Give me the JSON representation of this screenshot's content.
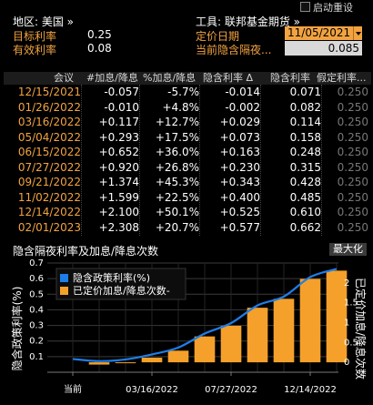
{
  "header": {
    "restart_label": "启动重设",
    "region_label": "地区: 美国 »",
    "tool_label": "工具: 联邦基金期货 »",
    "target_rate_label": "目标利率",
    "target_rate_value": "0.25",
    "effective_rate_label": "有效利率",
    "effective_rate_value": "0.08",
    "pricing_date_label": "定价日期",
    "pricing_date_value": "11/05/2021",
    "implied_rate_label": "当前隐含隔夜...",
    "implied_rate_value": "0.085"
  },
  "table": {
    "headers": [
      "会议",
      "#加息/降息",
      "%加息/降息",
      "隐含利率 Δ",
      "隐含利率",
      "假定利率..."
    ],
    "rows": [
      {
        "date": "12/15/2021",
        "chg": "-0.057",
        "pct": "-5.7%",
        "delta": "-0.014",
        "rate": "0.071",
        "assume": "0.250"
      },
      {
        "date": "01/26/2022",
        "chg": "-0.010",
        "pct": "+4.8%",
        "delta": "-0.002",
        "rate": "0.082",
        "assume": "0.250"
      },
      {
        "date": "03/16/2022",
        "chg": "+0.117",
        "pct": "+12.7%",
        "delta": "+0.029",
        "rate": "0.114",
        "assume": "0.250"
      },
      {
        "date": "05/04/2022",
        "chg": "+0.293",
        "pct": "+17.5%",
        "delta": "+0.073",
        "rate": "0.158",
        "assume": "0.250"
      },
      {
        "date": "06/15/2022",
        "chg": "+0.652",
        "pct": "+36.0%",
        "delta": "+0.163",
        "rate": "0.248",
        "assume": "0.250"
      },
      {
        "date": "07/27/2022",
        "chg": "+0.920",
        "pct": "+26.8%",
        "delta": "+0.230",
        "rate": "0.315",
        "assume": "0.250"
      },
      {
        "date": "09/21/2022",
        "chg": "+1.374",
        "pct": "+45.3%",
        "delta": "+0.343",
        "rate": "0.428",
        "assume": "0.250"
      },
      {
        "date": "11/02/2022",
        "chg": "+1.599",
        "pct": "+22.5%",
        "delta": "+0.400",
        "rate": "0.485",
        "assume": "0.250"
      },
      {
        "date": "12/14/2022",
        "chg": "+2.100",
        "pct": "+50.1%",
        "delta": "+0.525",
        "rate": "0.610",
        "assume": "0.250"
      },
      {
        "date": "02/01/2023",
        "chg": "+2.308",
        "pct": "+20.7%",
        "delta": "+0.577",
        "rate": "0.662",
        "assume": "0.250"
      }
    ]
  },
  "chart_header": {
    "title": "隐含隔夜利率及加息/降息次数",
    "maximize_label": "最大化"
  },
  "chart_data": {
    "type": "bar",
    "ylabel_left": "隐含政策利率(%)",
    "ylabel_right": "已定价加息/降息次数",
    "legend": [
      "隐含政策利率(%)",
      "已定价加息/降息次数-"
    ],
    "legend_placement": "top-left",
    "x_labels": [
      "当前",
      "03/16/2022",
      "07/27/2022",
      "12/14/2022"
    ],
    "x_label_index": [
      0,
      3,
      6,
      9
    ],
    "left_ylim": [
      0.0,
      0.7
    ],
    "left_ticks": [
      "0.7",
      "0.6",
      "0.5",
      "0.4",
      "0.3",
      "0.2",
      "0.1"
    ],
    "right_ylim": [
      -0.25,
      2.5
    ],
    "right_ticks": [
      "2",
      "1.5",
      "1",
      "0.5",
      "0"
    ],
    "bars": [
      -0.057,
      -0.01,
      0.117,
      0.293,
      0.652,
      0.92,
      1.374,
      1.599,
      2.1,
      2.308
    ],
    "line": [
      0.085,
      0.071,
      0.082,
      0.114,
      0.158,
      0.248,
      0.315,
      0.428,
      0.485,
      0.61,
      0.662
    ],
    "colors": {
      "bar": "#f5a02a",
      "line": "#1e7ee8",
      "grid": "#3a3a3a"
    }
  }
}
